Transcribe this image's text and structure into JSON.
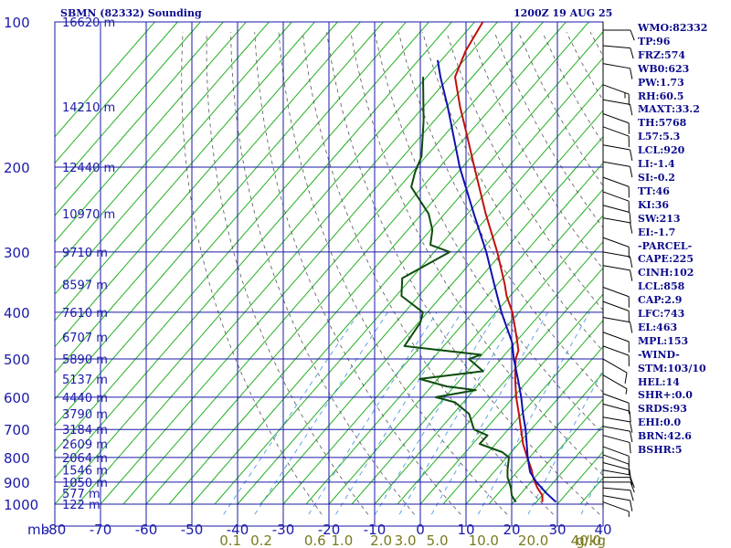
{
  "header": {
    "title": "SBMN (82332) Sounding",
    "timestamp": "1200Z 19 AUG 25"
  },
  "indices": [
    "WMO:82332",
    "TP:96",
    "FRZ:574",
    "WB0:623",
    "PW:1.73",
    "RH:60.5",
    "MAXT:33.2",
    "TH:5768",
    "L57:5.3",
    "LCL:920",
    "LI:-1.4",
    "SI:-0.2",
    "TT:46",
    "KI:36",
    "SW:213",
    "EI:-1.7",
    "-PARCEL-",
    "CAPE:225",
    "CINH:102",
    "LCL:858",
    "CAP:2.9",
    "LFC:743",
    "EL:463",
    "MPL:153",
    "-WIND-",
    "STM:103/10",
    "HEL:14",
    "SHR+:0.0",
    "SRDS:93",
    "EHI:0.0",
    "BRN:42.6",
    "BSHR:5"
  ],
  "colors": {
    "axis": "#1a1aa8",
    "isotherm": "#22b022",
    "dry_adiabat": "#555555",
    "mixing_ratio": "#3b8fd8",
    "temperature": "#c01010",
    "dewpoint": "#0e4d0e",
    "parcel": "#1010b0",
    "mixing_label": "#7a7a20"
  },
  "chart_data": {
    "type": "skew-t",
    "xlabel": "mb",
    "ylabel": "",
    "pressure_ticks": [
      100,
      200,
      300,
      400,
      500,
      600,
      700,
      800,
      900,
      1000
    ],
    "temperature_ticks": [
      -80,
      -70,
      -60,
      -50,
      -40,
      -30,
      -20,
      -10,
      0,
      10,
      20,
      30,
      40
    ],
    "temperature_tick_labels": [
      "-80",
      "-70",
      "-60",
      "-50",
      "-40",
      "-30",
      "-20",
      "-10",
      "0",
      "10",
      "20",
      "30",
      "40"
    ],
    "height_labels": [
      {
        "p": 100,
        "label": "16620 m"
      },
      {
        "p": 150,
        "label": "14210 m"
      },
      {
        "p": 200,
        "label": "12440 m"
      },
      {
        "p": 250,
        "label": "10970 m"
      },
      {
        "p": 300,
        "label": "9710 m"
      },
      {
        "p": 350,
        "label": "8597 m"
      },
      {
        "p": 400,
        "label": "7610 m"
      },
      {
        "p": 450,
        "label": "6707 m"
      },
      {
        "p": 500,
        "label": "5890 m"
      },
      {
        "p": 550,
        "label": "5137 m"
      },
      {
        "p": 600,
        "label": "4440 m"
      },
      {
        "p": 650,
        "label": "3790 m"
      },
      {
        "p": 700,
        "label": "3184 m"
      },
      {
        "p": 750,
        "label": "2609 m"
      },
      {
        "p": 800,
        "label": "2064 m"
      },
      {
        "p": 850,
        "label": "1546 m"
      },
      {
        "p": 900,
        "label": "1050 m"
      },
      {
        "p": 950,
        "label": "577 m"
      },
      {
        "p": 1000,
        "label": "122 m"
      }
    ],
    "mixing_ratio_labels": [
      {
        "w": 0.1,
        "label": "0.1"
      },
      {
        "w": 0.2,
        "label": "0.2"
      },
      {
        "w": 0.6,
        "label": "0.6"
      },
      {
        "w": 1.0,
        "label": "1.0"
      },
      {
        "w": 2.0,
        "label": "2.0"
      },
      {
        "w": 3.0,
        "label": "3.0"
      },
      {
        "w": 5.0,
        "label": "5.0"
      },
      {
        "w": 10.0,
        "label": "10.0"
      },
      {
        "w": 20.0,
        "label": "20.0"
      },
      {
        "w": 40.0,
        "label": "40.0"
      }
    ],
    "mixing_ratio_unit": "g/kg",
    "series": [
      {
        "key": "temperature",
        "points": [
          {
            "p": 990,
            "t": 26.3
          },
          {
            "p": 960,
            "t": 25.1
          },
          {
            "p": 925,
            "t": 22.5
          },
          {
            "p": 880,
            "t": 19.6
          },
          {
            "p": 850,
            "t": 17.9
          },
          {
            "p": 800,
            "t": 14.5
          },
          {
            "p": 750,
            "t": 11.0
          },
          {
            "p": 700,
            "t": 7.8
          },
          {
            "p": 650,
            "t": 4.4
          },
          {
            "p": 600,
            "t": 0.6
          },
          {
            "p": 550,
            "t": -3.1
          },
          {
            "p": 500,
            "t": -6.8
          },
          {
            "p": 480,
            "t": -7.8
          },
          {
            "p": 450,
            "t": -10.8
          },
          {
            "p": 400,
            "t": -16.4
          },
          {
            "p": 370,
            "t": -20.8
          },
          {
            "p": 350,
            "t": -23.4
          },
          {
            "p": 300,
            "t": -31.2
          },
          {
            "p": 250,
            "t": -41.0
          },
          {
            "p": 200,
            "t": -52.4
          },
          {
            "p": 170,
            "t": -60.6
          },
          {
            "p": 150,
            "t": -67.0
          },
          {
            "p": 130,
            "t": -73.8
          },
          {
            "p": 115,
            "t": -76.4
          },
          {
            "p": 100,
            "t": -78.2
          }
        ]
      },
      {
        "key": "dewpoint",
        "points": [
          {
            "p": 990,
            "t": 20.5
          },
          {
            "p": 960,
            "t": 18.4
          },
          {
            "p": 925,
            "t": 16.7
          },
          {
            "p": 880,
            "t": 14.0
          },
          {
            "p": 850,
            "t": 12.6
          },
          {
            "p": 800,
            "t": 10.5
          },
          {
            "p": 780,
            "t": 8.0
          },
          {
            "p": 750,
            "t": 1.5
          },
          {
            "p": 720,
            "t": 1.6
          },
          {
            "p": 700,
            "t": -2.5
          },
          {
            "p": 650,
            "t": -6.5
          },
          {
            "p": 615,
            "t": -11.8
          },
          {
            "p": 600,
            "t": -17.0
          },
          {
            "p": 580,
            "t": -9.6
          },
          {
            "p": 570,
            "t": -16.6
          },
          {
            "p": 550,
            "t": -24.0
          },
          {
            "p": 530,
            "t": -11.6
          },
          {
            "p": 500,
            "t": -17.0
          },
          {
            "p": 490,
            "t": -15.2
          },
          {
            "p": 470,
            "t": -33.6
          },
          {
            "p": 420,
            "t": -34.6
          },
          {
            "p": 400,
            "t": -36.0
          },
          {
            "p": 370,
            "t": -43.8
          },
          {
            "p": 340,
            "t": -47.0
          },
          {
            "p": 300,
            "t": -41.6
          },
          {
            "p": 290,
            "t": -47.2
          },
          {
            "p": 270,
            "t": -49.6
          },
          {
            "p": 250,
            "t": -53.5
          },
          {
            "p": 220,
            "t": -62.4
          },
          {
            "p": 205,
            "t": -64.4
          },
          {
            "p": 190,
            "t": -66.0
          },
          {
            "p": 160,
            "t": -72.4
          },
          {
            "p": 130,
            "t": -80.8
          }
        ]
      },
      {
        "key": "parcel",
        "points": [
          {
            "p": 990,
            "t": 29.3
          },
          {
            "p": 950,
            "t": 25.6
          },
          {
            "p": 900,
            "t": 21.2
          },
          {
            "p": 858,
            "t": 17.9
          },
          {
            "p": 800,
            "t": 14.6
          },
          {
            "p": 743,
            "t": 11.4
          },
          {
            "p": 700,
            "t": 8.8
          },
          {
            "p": 650,
            "t": 5.3
          },
          {
            "p": 600,
            "t": 1.7
          },
          {
            "p": 550,
            "t": -2.5
          },
          {
            "p": 500,
            "t": -7.2
          },
          {
            "p": 463,
            "t": -10.6
          },
          {
            "p": 400,
            "t": -18.8
          },
          {
            "p": 350,
            "t": -25.7
          },
          {
            "p": 300,
            "t": -33.6
          },
          {
            "p": 250,
            "t": -43.6
          },
          {
            "p": 200,
            "t": -55.6
          },
          {
            "p": 150,
            "t": -69.7
          },
          {
            "p": 130,
            "t": -77.0
          },
          {
            "p": 120,
            "t": -80.8
          }
        ]
      }
    ],
    "wind_barbs": [
      {
        "p": 990,
        "dir": 110,
        "spd": 5
      },
      {
        "p": 960,
        "dir": 100,
        "spd": 10
      },
      {
        "p": 925,
        "dir": 95,
        "spd": 10
      },
      {
        "p": 900,
        "dir": 90,
        "spd": 10
      },
      {
        "p": 880,
        "dir": 90,
        "spd": 10
      },
      {
        "p": 850,
        "dir": 100,
        "spd": 10
      },
      {
        "p": 820,
        "dir": 105,
        "spd": 10
      },
      {
        "p": 790,
        "dir": 110,
        "spd": 10
      },
      {
        "p": 760,
        "dir": 110,
        "spd": 10
      },
      {
        "p": 720,
        "dir": 105,
        "spd": 10
      },
      {
        "p": 690,
        "dir": 100,
        "spd": 10
      },
      {
        "p": 660,
        "dir": 100,
        "spd": 10
      },
      {
        "p": 620,
        "dir": 105,
        "spd": 10
      },
      {
        "p": 590,
        "dir": 110,
        "spd": 10
      },
      {
        "p": 540,
        "dir": 120,
        "spd": 5
      },
      {
        "p": 500,
        "dir": 120,
        "spd": 10
      },
      {
        "p": 470,
        "dir": 110,
        "spd": 10
      },
      {
        "p": 440,
        "dir": 110,
        "spd": 10
      },
      {
        "p": 410,
        "dir": 100,
        "spd": 10
      },
      {
        "p": 380,
        "dir": 110,
        "spd": 10
      },
      {
        "p": 355,
        "dir": 110,
        "spd": 10
      },
      {
        "p": 320,
        "dir": 100,
        "spd": 10
      },
      {
        "p": 300,
        "dir": 100,
        "spd": 10
      },
      {
        "p": 280,
        "dir": 110,
        "spd": 10
      },
      {
        "p": 255,
        "dir": 100,
        "spd": 10
      },
      {
        "p": 240,
        "dir": 105,
        "spd": 10
      },
      {
        "p": 225,
        "dir": 110,
        "spd": 10
      },
      {
        "p": 210,
        "dir": 110,
        "spd": 10
      },
      {
        "p": 195,
        "dir": 100,
        "spd": 10
      },
      {
        "p": 180,
        "dir": 100,
        "spd": 10
      },
      {
        "p": 165,
        "dir": 110,
        "spd": 10
      },
      {
        "p": 155,
        "dir": 110,
        "spd": 10
      },
      {
        "p": 145,
        "dir": 100,
        "spd": 10
      },
      {
        "p": 135,
        "dir": 110,
        "spd": 15
      },
      {
        "p": 122,
        "dir": 100,
        "spd": 10
      },
      {
        "p": 112,
        "dir": 95,
        "spd": 10
      },
      {
        "p": 104,
        "dir": 90,
        "spd": 10
      }
    ],
    "grid": true
  }
}
